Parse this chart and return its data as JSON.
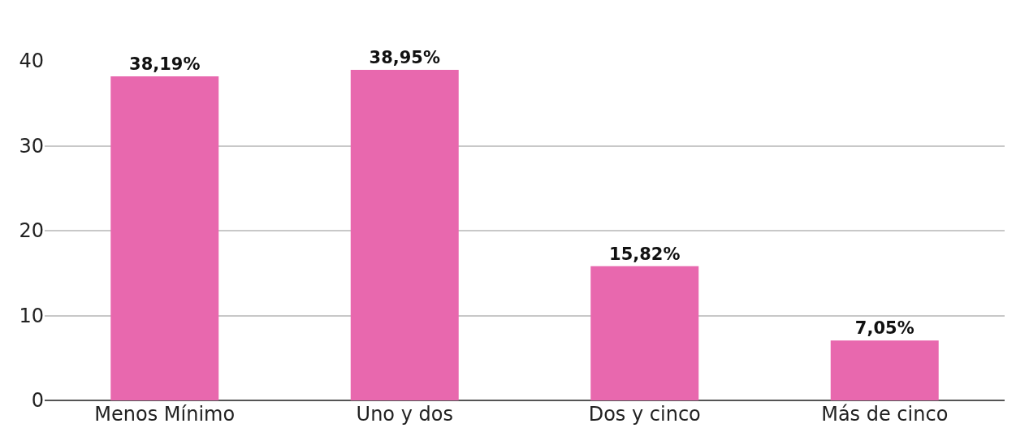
{
  "chart_data": {
    "type": "bar",
    "categories": [
      "Menos Mínimo",
      "Uno y dos",
      "Dos y cinco",
      "Más de cinco"
    ],
    "values": [
      38.19,
      38.95,
      15.82,
      7.05
    ],
    "value_labels": [
      "38,19%",
      "38,95%",
      "15,82%",
      "7,05%"
    ],
    "color": "#e868ae",
    "ylim": [
      0,
      40
    ],
    "yticks": [
      0,
      10,
      20,
      30,
      40
    ],
    "grid": "y",
    "legend": false
  }
}
